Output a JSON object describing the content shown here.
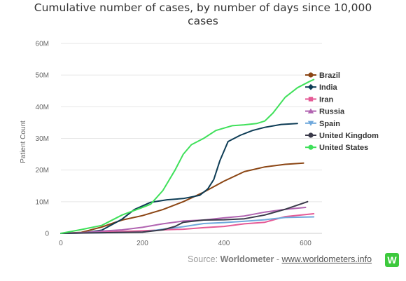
{
  "chart_data": {
    "type": "line",
    "title_lines": [
      "Cumulative number of cases, by number of days since 10,000",
      "cases"
    ],
    "ylabel": "Patient Count",
    "xlabel": "",
    "xlim": [
      0,
      620
    ],
    "ylim": [
      0,
      60000000
    ],
    "x_ticks": [
      0,
      200,
      400,
      600
    ],
    "x_tick_labels": [
      "0",
      "200",
      "400",
      "600"
    ],
    "y_ticks": [
      0,
      10000000,
      20000000,
      30000000,
      40000000,
      50000000,
      60000000
    ],
    "y_tick_labels": [
      "0",
      "10M",
      "20M",
      "30M",
      "40M",
      "50M",
      "60M"
    ],
    "grid": true,
    "legend_position": "right",
    "series": [
      {
        "name": "Brazil",
        "color": "#8b4513",
        "marker": "circle",
        "points": [
          [
            0,
            0
          ],
          [
            50,
            300000
          ],
          [
            100,
            2000000
          ],
          [
            150,
            4200000
          ],
          [
            200,
            5600000
          ],
          [
            250,
            7500000
          ],
          [
            300,
            10000000
          ],
          [
            350,
            13000000
          ],
          [
            400,
            16500000
          ],
          [
            450,
            19500000
          ],
          [
            500,
            21000000
          ],
          [
            550,
            21800000
          ],
          [
            595,
            22200000
          ]
        ]
      },
      {
        "name": "India",
        "color": "#0d3c55",
        "marker": "diamond",
        "points": [
          [
            0,
            0
          ],
          [
            50,
            100000
          ],
          [
            100,
            1000000
          ],
          [
            150,
            4500000
          ],
          [
            180,
            7500000
          ],
          [
            220,
            9800000
          ],
          [
            260,
            10600000
          ],
          [
            300,
            11000000
          ],
          [
            340,
            12000000
          ],
          [
            360,
            14000000
          ],
          [
            375,
            17000000
          ],
          [
            390,
            23000000
          ],
          [
            410,
            29000000
          ],
          [
            440,
            31000000
          ],
          [
            470,
            32500000
          ],
          [
            500,
            33500000
          ],
          [
            540,
            34400000
          ],
          [
            580,
            34700000
          ]
        ]
      },
      {
        "name": "Iran",
        "color": "#e55a96",
        "marker": "square",
        "points": [
          [
            0,
            0
          ],
          [
            50,
            200000
          ],
          [
            100,
            400000
          ],
          [
            150,
            600000
          ],
          [
            200,
            800000
          ],
          [
            250,
            1100000
          ],
          [
            300,
            1300000
          ],
          [
            350,
            1800000
          ],
          [
            400,
            2200000
          ],
          [
            450,
            3000000
          ],
          [
            500,
            3500000
          ],
          [
            550,
            5300000
          ],
          [
            620,
            6200000
          ]
        ]
      },
      {
        "name": "Russia",
        "color": "#b164b1",
        "marker": "triangle",
        "points": [
          [
            0,
            0
          ],
          [
            50,
            200000
          ],
          [
            100,
            700000
          ],
          [
            150,
            1100000
          ],
          [
            200,
            1900000
          ],
          [
            250,
            3000000
          ],
          [
            300,
            3900000
          ],
          [
            350,
            4200000
          ],
          [
            400,
            4900000
          ],
          [
            450,
            5500000
          ],
          [
            500,
            6700000
          ],
          [
            550,
            7600000
          ],
          [
            600,
            8200000
          ]
        ]
      },
      {
        "name": "Spain",
        "color": "#6fa8dc",
        "marker": "triangle-down",
        "points": [
          [
            0,
            0
          ],
          [
            100,
            200000
          ],
          [
            200,
            400000
          ],
          [
            250,
            1300000
          ],
          [
            300,
            2100000
          ],
          [
            350,
            3100000
          ],
          [
            400,
            3400000
          ],
          [
            450,
            3800000
          ],
          [
            500,
            4300000
          ],
          [
            550,
            5000000
          ],
          [
            620,
            5200000
          ]
        ]
      },
      {
        "name": "United Kingdom",
        "color": "#3a3a4a",
        "marker": "circle",
        "points": [
          [
            0,
            0
          ],
          [
            100,
            200000
          ],
          [
            200,
            400000
          ],
          [
            250,
            1100000
          ],
          [
            280,
            2200000
          ],
          [
            300,
            3500000
          ],
          [
            350,
            4200000
          ],
          [
            400,
            4300000
          ],
          [
            450,
            4600000
          ],
          [
            500,
            5800000
          ],
          [
            550,
            7600000
          ],
          [
            605,
            10000000
          ]
        ]
      },
      {
        "name": "United States",
        "color": "#3fe05a",
        "marker": "circle",
        "points": [
          [
            0,
            0
          ],
          [
            50,
            1200000
          ],
          [
            100,
            2500000
          ],
          [
            150,
            5800000
          ],
          [
            200,
            8200000
          ],
          [
            220,
            9200000
          ],
          [
            250,
            13500000
          ],
          [
            280,
            20000000
          ],
          [
            300,
            25000000
          ],
          [
            320,
            28000000
          ],
          [
            350,
            30000000
          ],
          [
            380,
            32500000
          ],
          [
            420,
            34000000
          ],
          [
            450,
            34300000
          ],
          [
            480,
            34700000
          ],
          [
            500,
            35500000
          ],
          [
            520,
            38000000
          ],
          [
            550,
            43000000
          ],
          [
            580,
            46000000
          ],
          [
            610,
            48000000
          ],
          [
            620,
            48600000
          ]
        ]
      }
    ]
  },
  "source": {
    "prefix": "Source: ",
    "brand": "Worldometer",
    "separator": " - ",
    "link": "www.worldometers.info",
    "logo_letter": "W"
  }
}
